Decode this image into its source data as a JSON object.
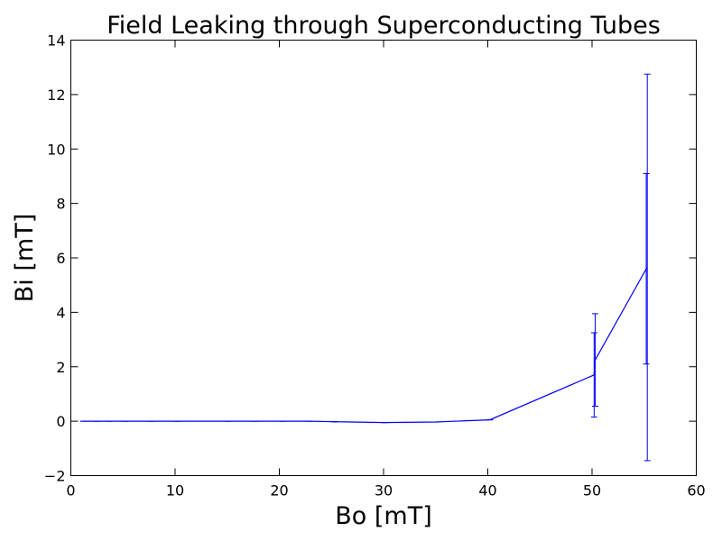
{
  "chart_data": {
    "type": "line",
    "title": "Field Leaking through Superconducting Tubes",
    "xlabel": "Bo [mT]",
    "ylabel": "Bi [mT]",
    "xlim": [
      0,
      60
    ],
    "ylim": [
      -2,
      14
    ],
    "xticks": [
      0,
      10,
      20,
      30,
      40,
      50,
      60
    ],
    "yticks": [
      -2,
      0,
      2,
      4,
      6,
      8,
      10,
      12,
      14
    ],
    "xtick_labels": [
      "0",
      "10",
      "20",
      "30",
      "40",
      "50",
      "60"
    ],
    "ytick_labels": [
      "−2",
      "0",
      "2",
      "4",
      "6",
      "8",
      "10",
      "12",
      "14"
    ],
    "grid": false,
    "line_color": "#0000ff",
    "series": [
      {
        "x": [
          1.2,
          2.5,
          3.7,
          5.2,
          7.7,
          10.2,
          15.1,
          17.6,
          20.3,
          22.8,
          25.3,
          30.1,
          35.0,
          40.2,
          50.2,
          50.3,
          55.2,
          55.3
        ],
        "y": [
          0.0,
          0.0,
          0.0,
          0.0,
          0.0,
          0.0,
          0.0,
          0.0,
          0.0,
          0.0,
          -0.02,
          -0.05,
          -0.03,
          0.05,
          1.7,
          2.25,
          5.6,
          5.65
        ],
        "yerr": [
          0.0,
          0.0,
          0.0,
          0.0,
          0.0,
          0.0,
          0.0,
          0.0,
          0.0,
          0.0,
          0.0,
          0.0,
          0.0,
          0.0,
          1.55,
          1.7,
          3.5,
          7.1
        ]
      }
    ]
  }
}
